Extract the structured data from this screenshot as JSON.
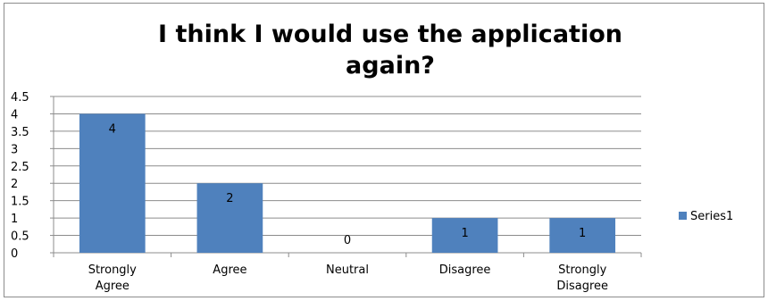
{
  "chart_data": {
    "type": "bar",
    "title_lines": [
      "I think I would use the application",
      "again?"
    ],
    "categories": [
      [
        "Strongly",
        "Agree"
      ],
      [
        "Agree"
      ],
      [
        "Neutral"
      ],
      [
        "Disagree"
      ],
      [
        "Strongly",
        "Disagree"
      ]
    ],
    "series": [
      {
        "name": "Series1",
        "values": [
          4,
          2,
          0,
          1,
          1
        ],
        "color": "#4f81bd"
      }
    ],
    "data_labels": [
      "4",
      "2",
      "0",
      "1",
      "1"
    ],
    "ylim": [
      0,
      4.5
    ],
    "yticks": [
      "0",
      "0.5",
      "1",
      "1.5",
      "2",
      "2.5",
      "3",
      "3.5",
      "4",
      "4.5"
    ],
    "grid": true,
    "legend_position": "right"
  }
}
